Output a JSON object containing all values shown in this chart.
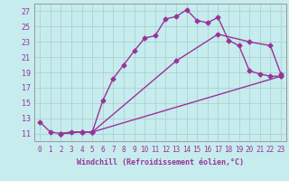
{
  "xlabel": "Windchill (Refroidissement éolien,°C)",
  "ylabel": "",
  "xlim": [
    -0.5,
    23.5
  ],
  "ylim": [
    10,
    28
  ],
  "xticks": [
    0,
    1,
    2,
    3,
    4,
    5,
    6,
    7,
    8,
    9,
    10,
    11,
    12,
    13,
    14,
    15,
    16,
    17,
    18,
    19,
    20,
    21,
    22,
    23
  ],
  "yticks": [
    11,
    13,
    15,
    17,
    19,
    21,
    23,
    25,
    27
  ],
  "bg_color": "#c6ecee",
  "line_color": "#993399",
  "grid_color": "#aacccc",
  "line1_x": [
    0,
    1,
    2,
    3,
    4,
    5,
    6,
    7,
    8,
    9,
    10,
    11,
    12,
    13,
    14,
    15,
    16,
    17,
    18,
    19,
    20,
    21,
    22,
    23
  ],
  "line1_y": [
    12.5,
    11.2,
    11.0,
    11.2,
    11.2,
    11.2,
    15.3,
    18.2,
    20.0,
    21.8,
    23.5,
    23.8,
    26.0,
    26.3,
    27.2,
    25.8,
    25.5,
    26.2,
    23.2,
    22.5,
    19.2,
    18.8,
    18.5,
    18.5
  ],
  "line2_x": [
    2,
    4,
    5,
    13,
    17,
    20,
    22,
    23
  ],
  "line2_y": [
    11.0,
    11.2,
    11.2,
    20.5,
    24.0,
    23.0,
    22.5,
    18.8
  ],
  "line3_x": [
    2,
    4,
    5,
    23
  ],
  "line3_y": [
    11.0,
    11.2,
    11.2,
    18.5
  ],
  "marker": "D",
  "markersize": 2.5,
  "linewidth": 1.0,
  "tick_fontsize": 5.5,
  "xlabel_fontsize": 6.0
}
